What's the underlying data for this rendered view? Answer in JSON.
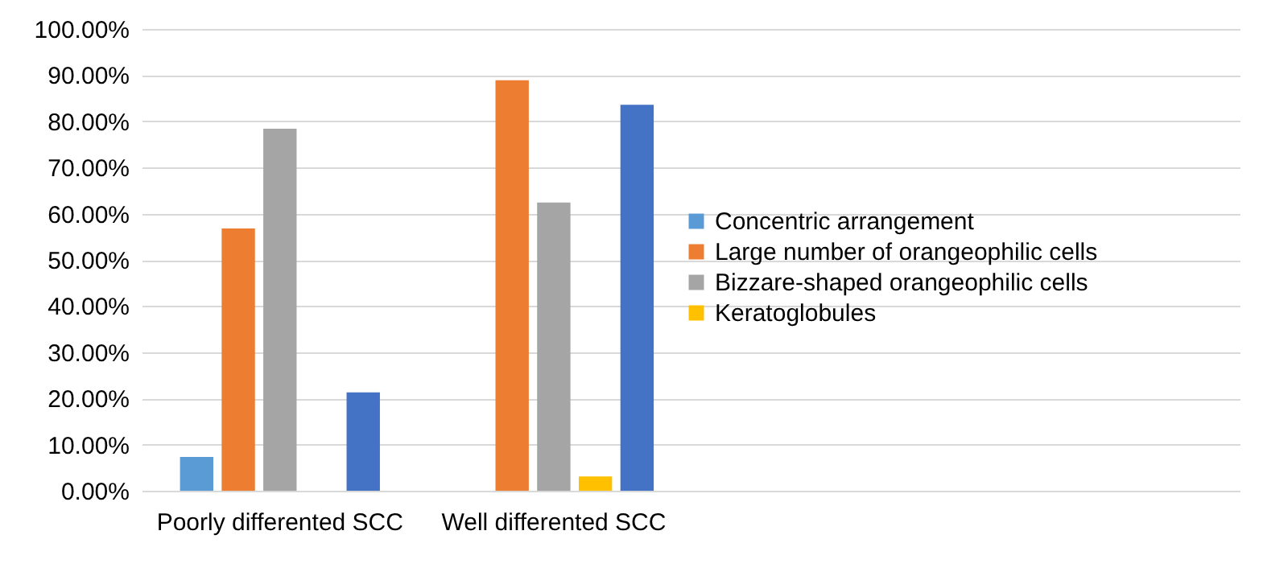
{
  "chart_data": {
    "type": "bar",
    "categories": [
      "Poorly differented SCC",
      "Well differented SCC",
      null,
      null
    ],
    "series": [
      {
        "name": "Concentric arrangement",
        "color": "#5b9bd5",
        "values": [
          7.3,
          0,
          null,
          null
        ]
      },
      {
        "name": "Large number of orangeophilic cells",
        "color": "#ed7d31",
        "values": [
          56.8,
          88.9,
          null,
          null
        ]
      },
      {
        "name": "Bizzare-shaped orangeophilic cells",
        "color": "#a5a5a5",
        "values": [
          78.4,
          62.4,
          null,
          null
        ]
      },
      {
        "name": "Keratoglobules",
        "color": "#ffc000",
        "values": [
          0,
          3.1,
          null,
          null
        ]
      },
      {
        "color": "#4472c4",
        "values": [
          21.3,
          83.6,
          null,
          null
        ]
      }
    ],
    "ylim": [
      0,
      100
    ],
    "yticks": [
      {
        "value": 0,
        "label": "0.00%"
      },
      {
        "value": 10,
        "label": "10.00%"
      },
      {
        "value": 20,
        "label": "20.00%"
      },
      {
        "value": 30,
        "label": "30.00%"
      },
      {
        "value": 40,
        "label": "40.00%"
      },
      {
        "value": 50,
        "label": "50.00%"
      },
      {
        "value": 60,
        "label": "60.00%"
      },
      {
        "value": 70,
        "label": "70.00%"
      },
      {
        "value": 80,
        "label": "80.00%"
      },
      {
        "value": 90,
        "label": "90.00%"
      },
      {
        "value": 100,
        "label": "100.00%"
      }
    ],
    "grid": "y",
    "legend": "right"
  }
}
